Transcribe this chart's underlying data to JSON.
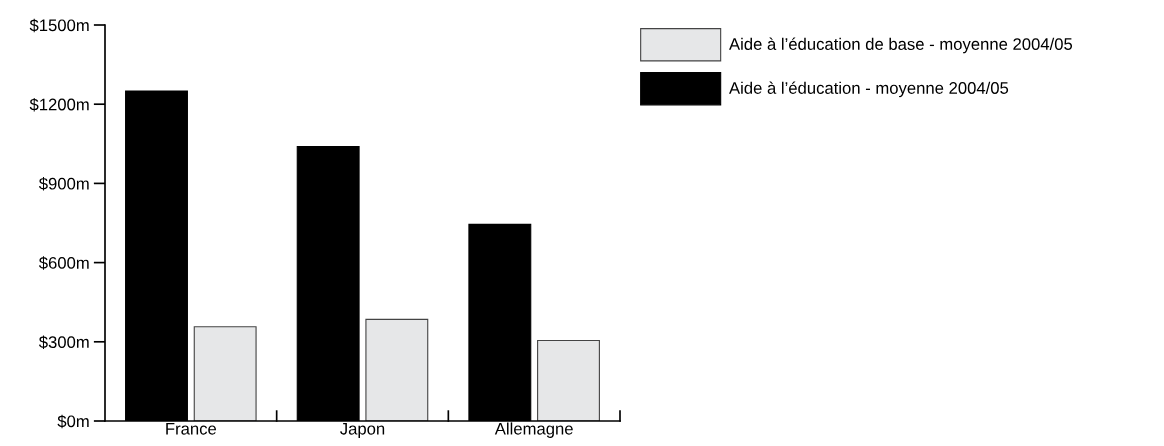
{
  "chart_data": {
    "type": "bar",
    "categories": [
      "France",
      "Japon",
      "Allemagne"
    ],
    "series": [
      {
        "name": "Aide à l’éducation - moyenne 2004/05",
        "color": "#000000",
        "values": [
          1250,
          1040,
          745
        ]
      },
      {
        "name": "Aide à l’éducation de base - moyenne 2004/05",
        "color": "#e6e7e8",
        "values": [
          357,
          385,
          305
        ]
      }
    ],
    "ylim": [
      0,
      1500
    ],
    "yticks": [
      {
        "value": 0,
        "label": "$0m"
      },
      {
        "value": 300,
        "label": "$300m"
      },
      {
        "value": 600,
        "label": "$600m"
      },
      {
        "value": 900,
        "label": "$900m"
      },
      {
        "value": 1200,
        "label": "$1200m"
      },
      {
        "value": 1500,
        "label": "$1500m"
      }
    ],
    "grid": false,
    "legend": "top right"
  }
}
